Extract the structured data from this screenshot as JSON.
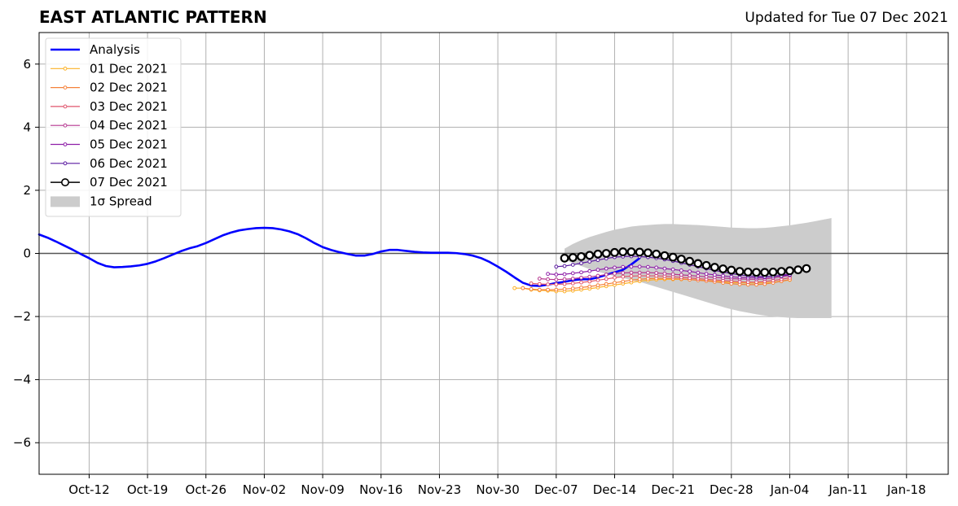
{
  "header": {
    "title": "EAST ATLANTIC PATTERN",
    "subtitle": "Updated for Tue 07 Dec 2021"
  },
  "chart_data": {
    "type": "line",
    "title": "EAST ATLANTIC PATTERN",
    "subtitle": "Updated for Tue 07 Dec 2021",
    "xlabel": "",
    "ylabel": "",
    "x_axis": {
      "type": "date",
      "min": "2021-10-06",
      "max": "2022-01-23",
      "ticks": [
        "2021-10-12",
        "2021-10-19",
        "2021-10-26",
        "2021-11-02",
        "2021-11-09",
        "2021-11-16",
        "2021-11-23",
        "2021-11-30",
        "2021-12-07",
        "2021-12-14",
        "2021-12-21",
        "2021-12-28",
        "2022-01-04",
        "2022-01-11",
        "2022-01-18"
      ],
      "tick_labels": [
        "Oct-12",
        "Oct-19",
        "Oct-26",
        "Nov-02",
        "Nov-09",
        "Nov-16",
        "Nov-23",
        "Nov-30",
        "Dec-07",
        "Dec-14",
        "Dec-21",
        "Dec-28",
        "Jan-04",
        "Jan-11",
        "Jan-18"
      ]
    },
    "ylim": [
      -7,
      7
    ],
    "y_ticks": [
      -6,
      -4,
      -2,
      0,
      2,
      4,
      6
    ],
    "y_tick_labels": [
      "−6",
      "−4",
      "−2",
      "0",
      "2",
      "4",
      "6"
    ],
    "grid": true,
    "zero_line": 0,
    "legend_position": "upper-left",
    "legend": [
      "Analysis",
      "01 Dec 2021",
      "02 Dec 2021",
      "03 Dec 2021",
      "04 Dec 2021",
      "05 Dec 2021",
      "06 Dec 2021",
      "07 Dec 2021",
      "1σ Spread"
    ],
    "analysis": {
      "name": "Analysis",
      "color": "#0000ff",
      "start": "2021-10-06",
      "values": [
        0.6,
        0.5,
        0.38,
        0.25,
        0.12,
        -0.02,
        -0.15,
        -0.3,
        -0.4,
        -0.44,
        -0.43,
        -0.41,
        -0.38,
        -0.33,
        -0.25,
        -0.15,
        -0.04,
        0.07,
        0.16,
        0.23,
        0.33,
        0.45,
        0.57,
        0.66,
        0.73,
        0.77,
        0.8,
        0.81,
        0.8,
        0.76,
        0.7,
        0.61,
        0.48,
        0.33,
        0.2,
        0.11,
        0.04,
        -0.02,
        -0.07,
        -0.07,
        -0.02,
        0.06,
        0.11,
        0.11,
        0.08,
        0.05,
        0.03,
        0.02,
        0.02,
        0.02,
        0.01,
        -0.02,
        -0.07,
        -0.15,
        -0.27,
        -0.42,
        -0.58,
        -0.76,
        -0.93,
        -1.02,
        -1.03,
        -0.99,
        -0.94,
        -0.9,
        -0.85,
        -0.82,
        -0.82,
        -0.76,
        -0.68,
        -0.6,
        -0.52,
        -0.35,
        -0.15
      ]
    },
    "forecasts": [
      {
        "name": "01 Dec 2021",
        "color": "#fcb125",
        "start": "2021-12-02",
        "values": [
          -1.1,
          -1.1,
          -1.15,
          -1.17,
          -1.18,
          -1.2,
          -1.2,
          -1.18,
          -1.15,
          -1.12,
          -1.08,
          -1.04,
          -1.0,
          -0.96,
          -0.92,
          -0.88,
          -0.85,
          -0.83,
          -0.82,
          -0.82,
          -0.82,
          -0.83,
          -0.84,
          -0.86,
          -0.88,
          -0.9,
          -0.92,
          -0.93,
          -0.94,
          -0.94,
          -0.93,
          -0.91,
          -0.88,
          -0.84
        ]
      },
      {
        "name": "02 Dec 2021",
        "color": "#f5813a",
        "start": "2021-12-03",
        "values": [
          -1.1,
          -1.13,
          -1.15,
          -1.15,
          -1.15,
          -1.13,
          -1.11,
          -1.08,
          -1.05,
          -1.01,
          -0.97,
          -0.93,
          -0.89,
          -0.85,
          -0.82,
          -0.8,
          -0.79,
          -0.79,
          -0.8,
          -0.81,
          -0.83,
          -0.85,
          -0.87,
          -0.9,
          -0.93,
          -0.96,
          -0.98,
          -0.99,
          -0.99,
          -0.97,
          -0.93,
          -0.88,
          -0.83
        ]
      },
      {
        "name": "03 Dec 2021",
        "color": "#e0546c",
        "start": "2021-12-04",
        "values": [
          -0.95,
          -0.97,
          -0.98,
          -0.98,
          -0.97,
          -0.95,
          -0.92,
          -0.89,
          -0.85,
          -0.81,
          -0.77,
          -0.74,
          -0.72,
          -0.71,
          -0.71,
          -0.71,
          -0.72,
          -0.74,
          -0.76,
          -0.78,
          -0.8,
          -0.82,
          -0.84,
          -0.86,
          -0.88,
          -0.9,
          -0.91,
          -0.91,
          -0.89,
          -0.86,
          -0.82,
          -0.77
        ]
      },
      {
        "name": "04 Dec 2021",
        "color": "#b5358f",
        "start": "2021-12-05",
        "values": [
          -0.8,
          -0.82,
          -0.83,
          -0.82,
          -0.8,
          -0.77,
          -0.74,
          -0.71,
          -0.67,
          -0.64,
          -0.62,
          -0.61,
          -0.61,
          -0.61,
          -0.62,
          -0.64,
          -0.66,
          -0.68,
          -0.7,
          -0.72,
          -0.74,
          -0.76,
          -0.78,
          -0.8,
          -0.81,
          -0.82,
          -0.82,
          -0.81,
          -0.78,
          -0.74,
          -0.7
        ]
      },
      {
        "name": "05 Dec 2021",
        "color": "#8e1fa8",
        "start": "2021-12-06",
        "values": [
          -0.65,
          -0.67,
          -0.66,
          -0.63,
          -0.6,
          -0.56,
          -0.52,
          -0.48,
          -0.45,
          -0.43,
          -0.42,
          -0.42,
          -0.43,
          -0.45,
          -0.48,
          -0.51,
          -0.54,
          -0.57,
          -0.61,
          -0.65,
          -0.68,
          -0.71,
          -0.74,
          -0.76,
          -0.77,
          -0.77,
          -0.76,
          -0.73,
          -0.69,
          -0.65
        ]
      },
      {
        "name": "06 Dec 2021",
        "color": "#5a1aa0",
        "start": "2021-12-07",
        "values": [
          -0.42,
          -0.4,
          -0.36,
          -0.31,
          -0.26,
          -0.21,
          -0.16,
          -0.12,
          -0.1,
          -0.09,
          -0.1,
          -0.12,
          -0.15,
          -0.19,
          -0.24,
          -0.3,
          -0.36,
          -0.42,
          -0.48,
          -0.54,
          -0.59,
          -0.64,
          -0.68,
          -0.71,
          -0.73,
          -0.74,
          -0.73,
          -0.71,
          -0.68
        ]
      }
    ],
    "latest": {
      "name": "07 Dec 2021",
      "color": "#000000",
      "start": "2021-12-08",
      "values": [
        -0.15,
        -0.13,
        -0.1,
        -0.06,
        -0.02,
        0.0,
        0.03,
        0.05,
        0.05,
        0.04,
        0.02,
        -0.02,
        -0.07,
        -0.12,
        -0.18,
        -0.25,
        -0.32,
        -0.38,
        -0.44,
        -0.49,
        -0.53,
        -0.57,
        -0.59,
        -0.6,
        -0.6,
        -0.59,
        -0.57,
        -0.55,
        -0.52,
        -0.48
      ]
    },
    "spread": {
      "name": "1σ Spread",
      "color": "#cccccc",
      "start": "2021-12-08",
      "upper": [
        0.15,
        0.3,
        0.42,
        0.52,
        0.6,
        0.68,
        0.75,
        0.8,
        0.85,
        0.88,
        0.9,
        0.92,
        0.93,
        0.93,
        0.92,
        0.91,
        0.9,
        0.88,
        0.86,
        0.84,
        0.82,
        0.81,
        0.8,
        0.8,
        0.81,
        0.83,
        0.86,
        0.89,
        0.93,
        0.97,
        1.02,
        1.07,
        1.12
      ],
      "lower": [
        -0.2,
        -0.3,
        -0.4,
        -0.5,
        -0.58,
        -0.65,
        -0.72,
        -0.78,
        -0.84,
        -0.9,
        -0.98,
        -1.06,
        -1.14,
        -1.22,
        -1.3,
        -1.38,
        -1.46,
        -1.54,
        -1.62,
        -1.7,
        -1.77,
        -1.83,
        -1.88,
        -1.93,
        -1.97,
        -2.0,
        -2.02,
        -2.04,
        -2.05,
        -2.05,
        -2.05,
        -2.05,
        -2.05
      ]
    }
  }
}
